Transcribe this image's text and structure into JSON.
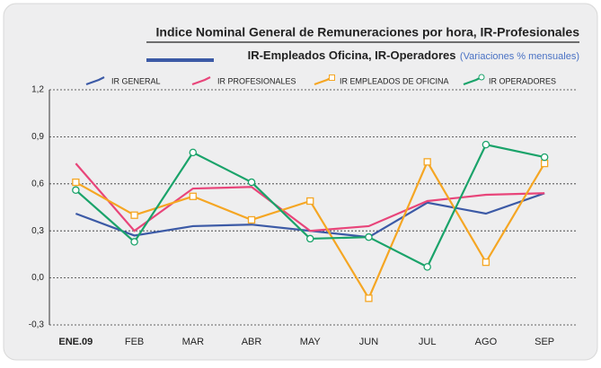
{
  "chart_data": {
    "type": "line",
    "title": "Indice Nominal General de Remuneraciones por hora, IR-Profesionales",
    "subtitle": "IR-Empleados Oficina, IR-Operadores",
    "subtitle_note": "(Variaciones % mensuales)",
    "categories": [
      "ENE.09",
      "FEB",
      "MAR",
      "ABR",
      "MAY",
      "JUN",
      "JUL",
      "AGO",
      "SEP"
    ],
    "ylim": [
      -0.3,
      1.2
    ],
    "yticks": [
      {
        "value": -0.3,
        "label": "-0,3"
      },
      {
        "value": 0,
        "label": "0,0"
      },
      {
        "value": 0.3,
        "label": "0,3"
      },
      {
        "value": 0.6,
        "label": "0,6"
      },
      {
        "value": 0.9,
        "label": "0,9"
      },
      {
        "value": 1.2,
        "label": "1,2"
      }
    ],
    "grid": true,
    "legend": "top",
    "series": [
      {
        "name": "IR GENERAL",
        "color": "#3c5aa6",
        "marker": "none",
        "values": [
          0.41,
          0.27,
          0.33,
          0.34,
          0.3,
          0.26,
          0.48,
          0.41,
          0.54
        ]
      },
      {
        "name": "IR PROFESIONALES",
        "color": "#e8457a",
        "marker": "none",
        "values": [
          0.73,
          0.3,
          0.57,
          0.58,
          0.3,
          0.33,
          0.49,
          0.53,
          0.54
        ]
      },
      {
        "name": "IR EMPLEADOS DE OFICINA",
        "color": "#f5a623",
        "marker": "square",
        "values": [
          0.61,
          0.4,
          0.52,
          0.37,
          0.49,
          -0.13,
          0.74,
          0.1,
          0.73
        ]
      },
      {
        "name": "IR OPERADORES",
        "color": "#1aa36a",
        "marker": "circle",
        "values": [
          0.56,
          0.23,
          0.8,
          0.61,
          0.25,
          0.26,
          0.07,
          0.85,
          0.77
        ]
      }
    ]
  }
}
